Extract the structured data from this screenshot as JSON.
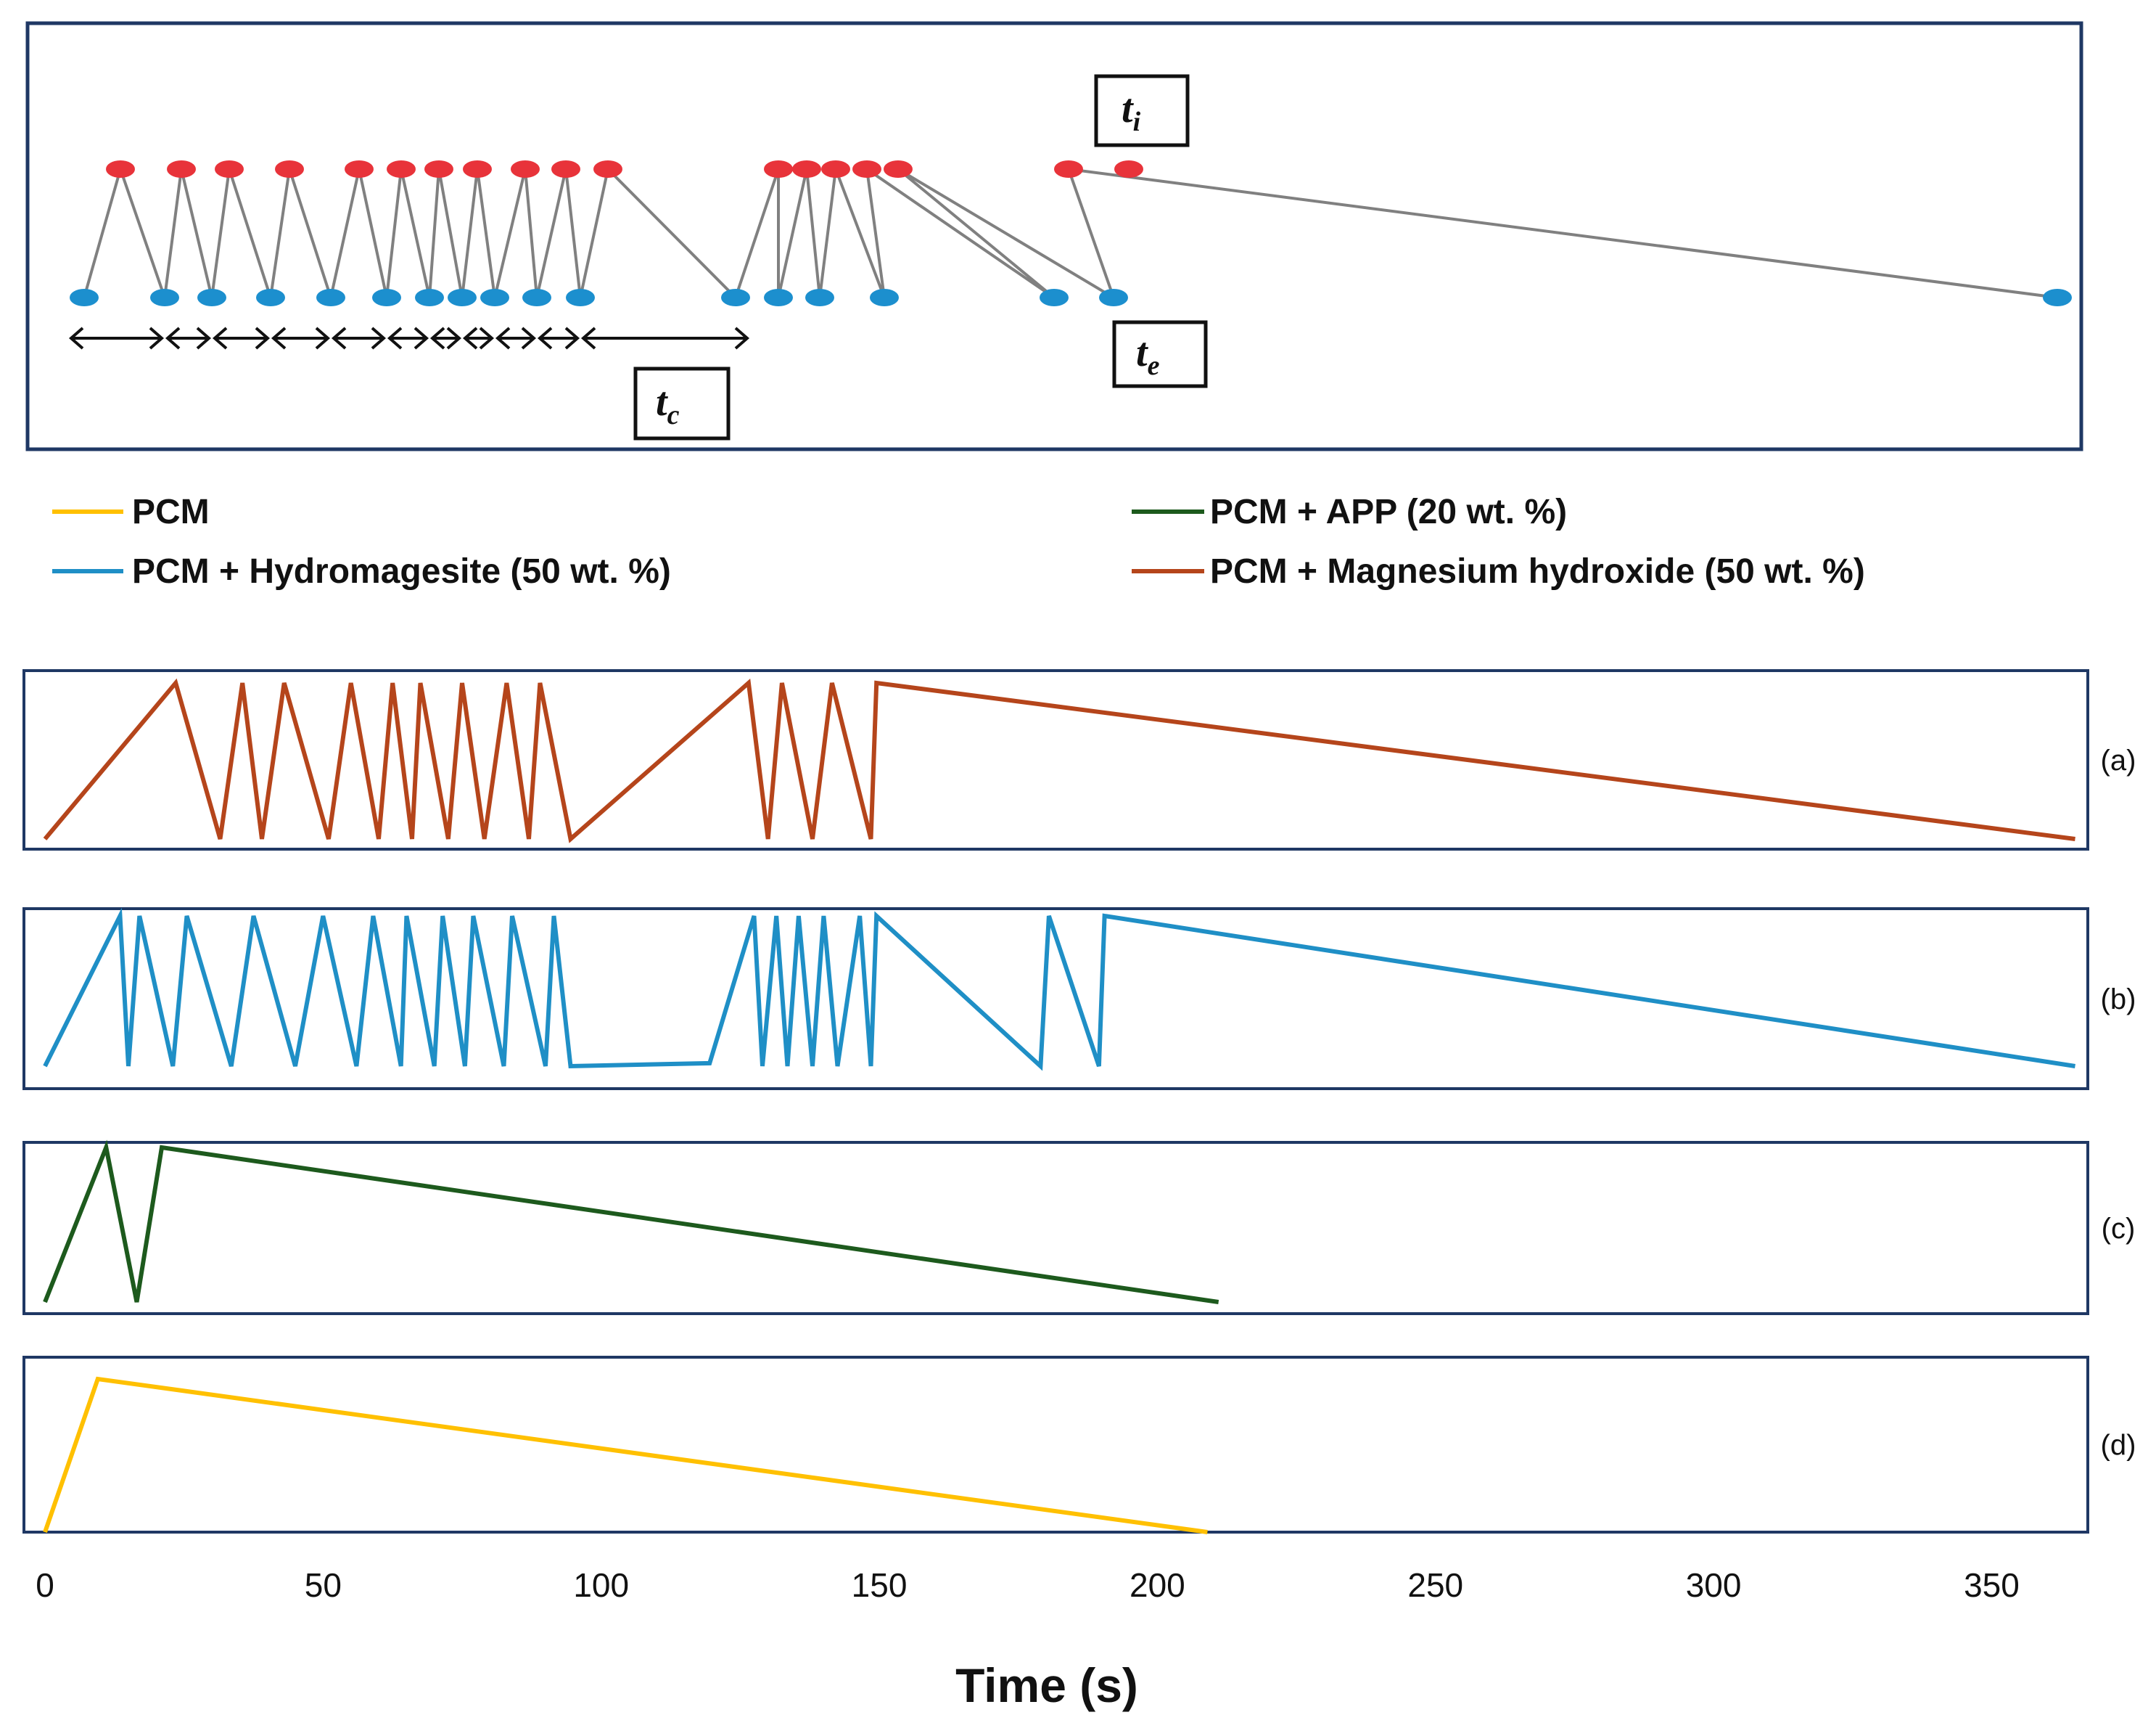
{
  "chart_data": [
    {
      "type": "line",
      "description_role": "schematic",
      "annotations": [
        {
          "main": "t",
          "sub": "i"
        },
        {
          "main": "t",
          "sub": "e"
        },
        {
          "main": "t",
          "sub": "c"
        }
      ],
      "colors": {
        "ignition_point": "#e8333a",
        "extinction_point": "#1c8fce",
        "connector": "#808080",
        "frame": "#1f3864"
      }
    },
    {
      "type": "line",
      "xlabel": "Time (s)",
      "xlim": [
        0,
        370
      ],
      "x_ticks": [
        "0",
        "50",
        "100",
        "150",
        "200",
        "250",
        "300",
        "350"
      ],
      "legend": [
        {
          "name": "PCM",
          "color": "#ffc000"
        },
        {
          "name": "PCM + APP (20 wt. %)",
          "color": "#1d5a1d"
        },
        {
          "name": "PCM + Hydromagesite (50 wt. %)",
          "color": "#1f8fc6"
        },
        {
          "name": "PCM + Magnesium hydroxide (50 wt. %)",
          "color": "#b5451b"
        }
      ],
      "panels": [
        {
          "label": "(a)",
          "series": "PCM + Magnesium hydroxide (50 wt. %)",
          "color": "#b5451b",
          "x": [
            0,
            23.5,
            31.5,
            35.5,
            39,
            43,
            51,
            55,
            60,
            62.5,
            66,
            67.5,
            72.5,
            75,
            79,
            83,
            87,
            89,
            94.5,
            126.5,
            130,
            132.5,
            138,
            141.5,
            148.5,
            149.5,
            365
          ],
          "y": [
            0,
            1,
            0,
            1,
            0,
            1,
            0,
            1,
            0,
            1,
            0,
            1,
            0,
            1,
            0,
            1,
            0,
            1,
            0,
            1,
            0,
            1,
            0,
            1,
            0,
            1,
            0
          ]
        },
        {
          "label": "(b)",
          "series": "PCM + Hydromagesite (50 wt. %)",
          "color": "#1f8fc6",
          "x": [
            0,
            13.5,
            15,
            17,
            23,
            25.5,
            33.5,
            37.5,
            45,
            50,
            56,
            50,
            56,
            59,
            64,
            65,
            70,
            71.5,
            75.5,
            77,
            82.5,
            84,
            90,
            91.5,
            94.5,
            119.5,
            127.5,
            129,
            131.5,
            133.5,
            135.5,
            138,
            140,
            142.5,
            146.5,
            148.5,
            149.5,
            179,
            180.5,
            189.5,
            190.5,
            365
          ],
          "y": [
            0,
            1,
            0,
            1,
            0,
            1,
            0,
            1,
            0,
            1,
            0,
            1,
            0,
            1,
            0,
            1,
            0,
            1,
            0,
            1,
            0,
            1,
            0,
            1,
            0,
            0.02,
            1,
            0,
            1,
            0,
            1,
            0,
            1,
            0,
            1,
            0,
            1,
            0,
            1,
            0,
            1,
            0
          ]
        },
        {
          "label": "(c)",
          "series": "PCM + APP (20 wt. %)",
          "color": "#1d5a1d",
          "x": [
            0,
            11,
            16.5,
            21,
            211
          ],
          "y": [
            0,
            1,
            0,
            1,
            0
          ]
        },
        {
          "label": "(d)",
          "series": "PCM",
          "color": "#ffc000",
          "x": [
            0,
            9.5,
            209
          ],
          "y": [
            0,
            1,
            0
          ]
        }
      ],
      "grid": false
    }
  ]
}
